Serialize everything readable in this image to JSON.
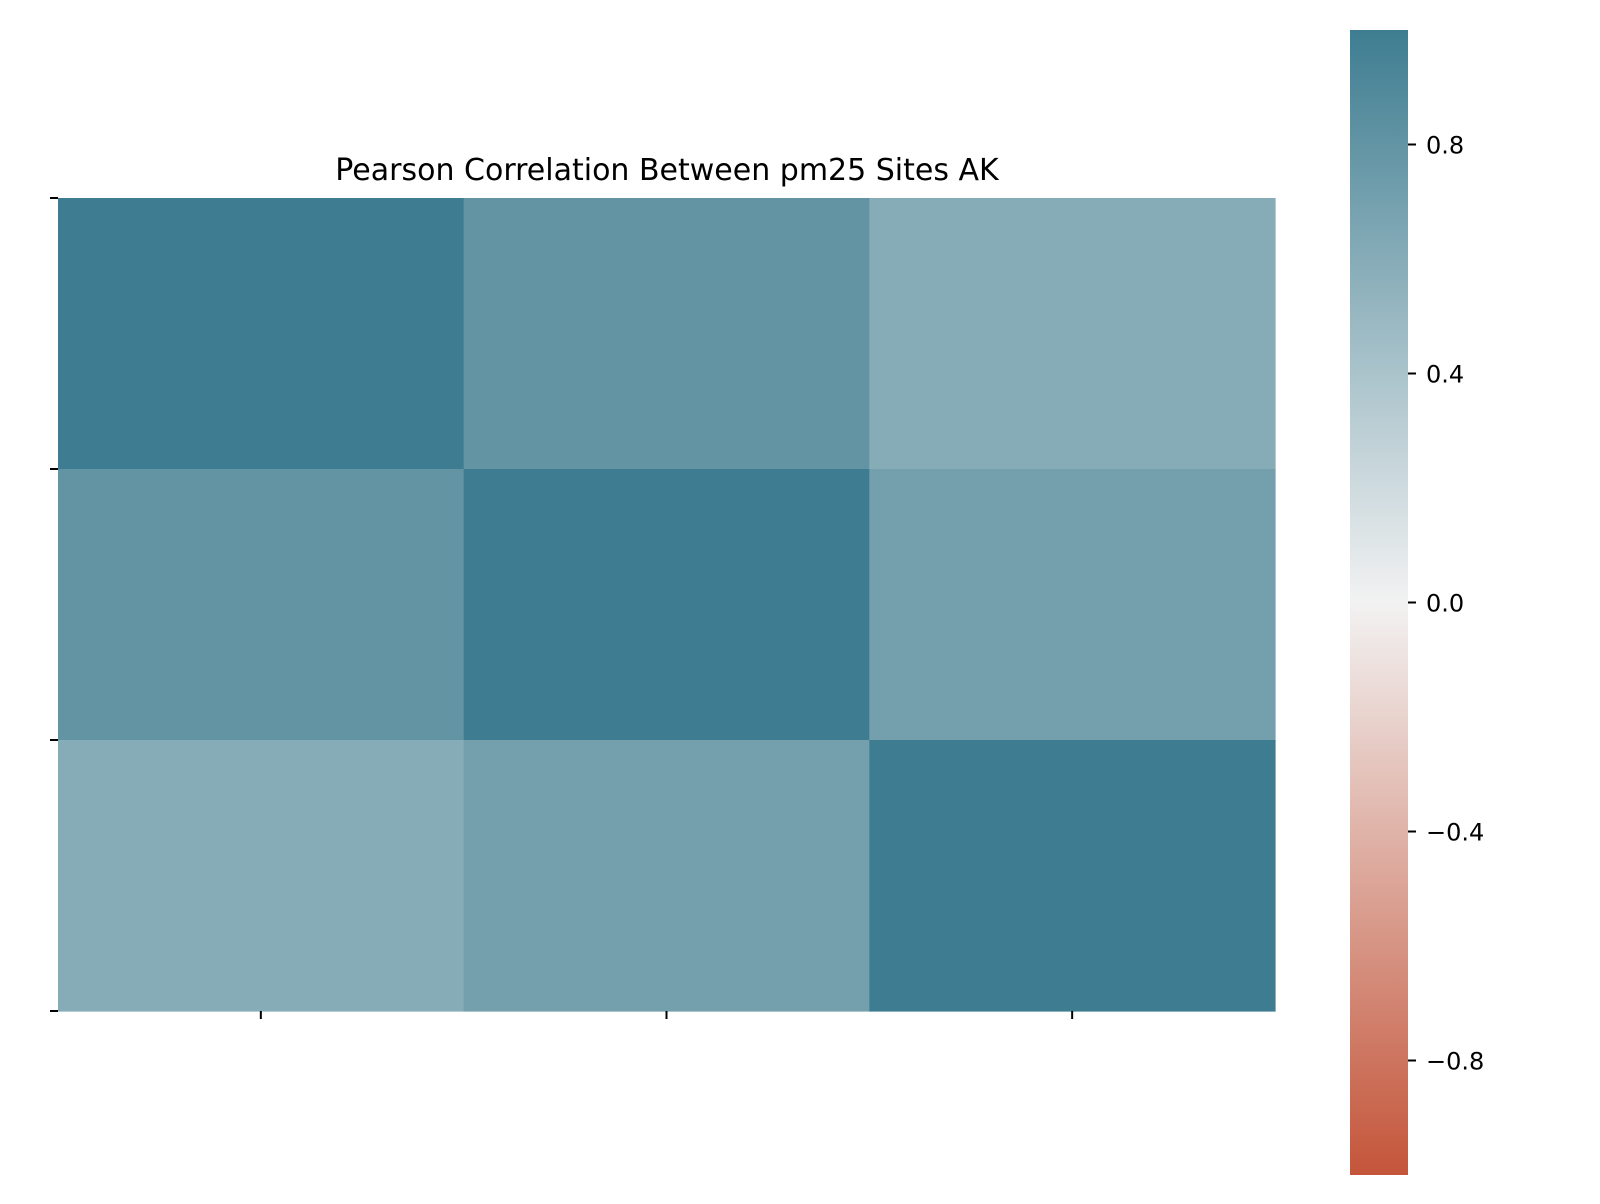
{
  "chart_data": {
    "type": "heatmap",
    "title": "Pearson Correlation Between pm25 Sites AK",
    "xlabel": "",
    "ylabel": "",
    "x_categories": [
      "",
      "",
      ""
    ],
    "y_categories": [
      "",
      "",
      ""
    ],
    "values": [
      [
        1.0,
        0.8,
        0.6
      ],
      [
        0.8,
        1.0,
        0.7
      ],
      [
        0.6,
        0.7,
        1.0
      ]
    ],
    "colorbar": {
      "vmin": -1.0,
      "vmax": 1.0,
      "ticks": [
        0.8,
        0.4,
        0.0,
        -0.4,
        -0.8
      ],
      "tick_labels": [
        "0.8",
        "0.4",
        "0.0",
        "−0.4",
        "−0.8"
      ],
      "colormap": "diverging",
      "colors": {
        "low": "#c4553a",
        "mid": "#f2f2f2",
        "high": "#3e7d91"
      }
    },
    "grid": false,
    "legend": "colorbar-right"
  }
}
